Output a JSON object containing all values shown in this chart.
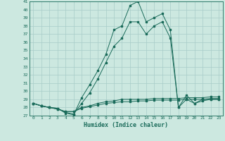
{
  "xlabel": "Humidex (Indice chaleur)",
  "bg_color": "#cce8e0",
  "grid_color": "#a8ccc8",
  "line_color": "#1a6b5a",
  "xlim": [
    -0.5,
    23.5
  ],
  "ylim": [
    27,
    41
  ],
  "yticks": [
    27,
    28,
    29,
    30,
    31,
    32,
    33,
    34,
    35,
    36,
    37,
    38,
    39,
    40,
    41
  ],
  "xticks": [
    0,
    1,
    2,
    3,
    4,
    5,
    6,
    7,
    8,
    9,
    10,
    11,
    12,
    13,
    14,
    15,
    16,
    17,
    18,
    19,
    20,
    21,
    22,
    23
  ],
  "series": [
    {
      "x": [
        0,
        1,
        2,
        3,
        4,
        5,
        6,
        7,
        8,
        9,
        10,
        11,
        12,
        13,
        14,
        15,
        16,
        17,
        18,
        19,
        20,
        21,
        22,
        23
      ],
      "y": [
        28.5,
        28.2,
        28.0,
        27.9,
        27.3,
        27.1,
        29.2,
        30.8,
        32.5,
        34.5,
        37.5,
        38.0,
        40.5,
        41.0,
        38.5,
        39.0,
        39.5,
        37.5,
        28.0,
        29.5,
        28.5,
        29.0,
        29.0,
        29.0
      ]
    },
    {
      "x": [
        0,
        1,
        2,
        3,
        4,
        5,
        6,
        7,
        8,
        9,
        10,
        11,
        12,
        13,
        14,
        15,
        16,
        17,
        18,
        19,
        20,
        21,
        22,
        23
      ],
      "y": [
        28.5,
        28.2,
        28.0,
        27.9,
        27.4,
        27.2,
        28.5,
        29.8,
        31.5,
        33.5,
        35.5,
        36.5,
        38.5,
        38.5,
        37.0,
        38.0,
        38.5,
        36.5,
        28.0,
        29.0,
        28.5,
        28.8,
        29.0,
        29.0
      ]
    },
    {
      "x": [
        0,
        1,
        2,
        3,
        4,
        5,
        6,
        7,
        8,
        9,
        10,
        11,
        12,
        13,
        14,
        15,
        16,
        17,
        18,
        19,
        20,
        21,
        22,
        23
      ],
      "y": [
        28.5,
        28.2,
        28.0,
        27.8,
        27.5,
        27.5,
        28.0,
        28.2,
        28.5,
        28.7,
        28.8,
        29.0,
        29.0,
        29.0,
        29.0,
        29.1,
        29.1,
        29.1,
        29.1,
        29.2,
        29.2,
        29.2,
        29.3,
        29.3
      ]
    },
    {
      "x": [
        0,
        1,
        2,
        3,
        4,
        5,
        6,
        7,
        8,
        9,
        10,
        11,
        12,
        13,
        14,
        15,
        16,
        17,
        18,
        19,
        20,
        21,
        22,
        23
      ],
      "y": [
        28.5,
        28.2,
        28.0,
        27.8,
        27.5,
        27.5,
        27.9,
        28.1,
        28.3,
        28.5,
        28.6,
        28.7,
        28.7,
        28.8,
        28.8,
        28.9,
        28.9,
        28.9,
        28.9,
        29.0,
        29.0,
        29.0,
        29.1,
        29.1
      ]
    }
  ]
}
